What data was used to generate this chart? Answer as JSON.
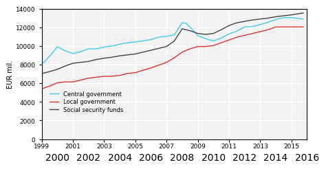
{
  "title": "",
  "ylabel": "EUR mil.",
  "xlim": [
    1999,
    2016
  ],
  "ylim": [
    0,
    14000
  ],
  "yticks": [
    0,
    2000,
    4000,
    6000,
    8000,
    10000,
    12000,
    14000
  ],
  "xticks_odd": [
    1999,
    2001,
    2003,
    2005,
    2007,
    2009,
    2011,
    2013,
    2015
  ],
  "xticks_even": [
    2000,
    2002,
    2004,
    2006,
    2008,
    2010,
    2012,
    2014,
    2016
  ],
  "legend_labels": [
    "Central government",
    "Local government",
    "Social security funds"
  ],
  "legend_colors": [
    "#44ccee",
    "#dd3333",
    "#444444"
  ],
  "background_color": "#f2f2f2",
  "central_government": {
    "years": [
      1999.0,
      1999.5,
      2000.0,
      2000.5,
      2001.0,
      2001.5,
      2002.0,
      2002.5,
      2003.0,
      2003.5,
      2004.0,
      2004.5,
      2005.0,
      2005.5,
      2006.0,
      2006.5,
      2007.0,
      2007.5,
      2008.0,
      2008.25,
      2008.75,
      2009.0,
      2009.5,
      2010.0,
      2010.5,
      2011.0,
      2011.5,
      2012.0,
      2012.5,
      2013.0,
      2013.5,
      2014.0,
      2014.5,
      2015.0,
      2015.75
    ],
    "values": [
      8000,
      8900,
      9900,
      9500,
      9200,
      9400,
      9700,
      9700,
      9900,
      10000,
      10200,
      10350,
      10450,
      10550,
      10700,
      10950,
      11050,
      11200,
      12500,
      12450,
      11600,
      11100,
      10800,
      10550,
      10850,
      11300,
      11600,
      12050,
      12100,
      12300,
      12550,
      12850,
      13050,
      13050,
      12900
    ]
  },
  "local_government": {
    "years": [
      1999.0,
      1999.5,
      2000.0,
      2000.5,
      2001.0,
      2001.5,
      2002.0,
      2002.5,
      2003.0,
      2003.5,
      2004.0,
      2004.5,
      2005.0,
      2005.5,
      2006.0,
      2006.5,
      2007.0,
      2007.5,
      2008.0,
      2008.5,
      2009.0,
      2009.5,
      2010.0,
      2010.5,
      2011.0,
      2011.5,
      2012.0,
      2012.5,
      2013.0,
      2013.5,
      2014.0,
      2014.5,
      2015.0,
      2015.75
    ],
    "values": [
      5400,
      5700,
      6050,
      6150,
      6150,
      6350,
      6550,
      6650,
      6750,
      6750,
      6850,
      7050,
      7150,
      7400,
      7650,
      7950,
      8250,
      8750,
      9350,
      9700,
      9950,
      9950,
      10050,
      10350,
      10650,
      10950,
      11150,
      11350,
      11550,
      11750,
      12050,
      12050,
      12050,
      12050
    ]
  },
  "social_security": {
    "years": [
      1999.0,
      1999.5,
      2000.0,
      2000.5,
      2001.0,
      2001.5,
      2002.0,
      2002.5,
      2003.0,
      2003.5,
      2004.0,
      2004.5,
      2005.0,
      2005.5,
      2006.0,
      2006.5,
      2007.0,
      2007.5,
      2008.0,
      2008.5,
      2009.0,
      2009.5,
      2010.0,
      2010.5,
      2011.0,
      2011.5,
      2012.0,
      2012.5,
      2013.0,
      2013.5,
      2014.0,
      2014.5,
      2015.0,
      2015.75
    ],
    "values": [
      7050,
      7250,
      7500,
      7850,
      8150,
      8250,
      8350,
      8550,
      8700,
      8800,
      8950,
      9050,
      9150,
      9350,
      9550,
      9750,
      9950,
      10550,
      11850,
      11650,
      11350,
      11250,
      11350,
      11750,
      12200,
      12500,
      12650,
      12800,
      12900,
      13000,
      13150,
      13250,
      13350,
      13550
    ]
  }
}
